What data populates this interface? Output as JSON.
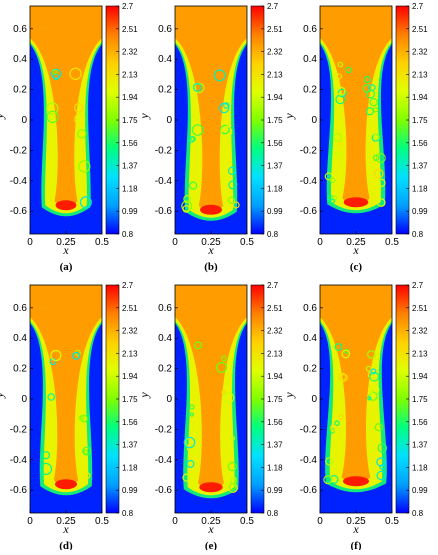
{
  "colorbar": {
    "ticks": [
      "2.7",
      "2.51",
      "2.32",
      "2.13",
      "1.94",
      "1.75",
      "1.56",
      "1.37",
      "1.18",
      "0.99",
      "0.8"
    ],
    "min": 0.8,
    "max": 2.7,
    "colors": [
      "#0000ff",
      "#00a0ff",
      "#00e0ff",
      "#00ff80",
      "#80ff00",
      "#e0ff00",
      "#ffd000",
      "#ff8000",
      "#ff0000"
    ]
  },
  "chart_data": [
    {
      "type": "heatmap",
      "panel": "(a)",
      "xlabel": "x",
      "ylabel": "y",
      "xlim": [
        0,
        0.5
      ],
      "ylim": [
        -0.75,
        0.75
      ],
      "xticks": [
        "0",
        "0.25",
        "0.5"
      ],
      "yticks": [
        "0.6",
        "0.4",
        "0.2",
        "0",
        "-0.2",
        "-0.4",
        "-0.6"
      ],
      "field_range": [
        0.8,
        2.7
      ],
      "front_y": -0.6,
      "front_width": 0.16,
      "detail": 0.25
    },
    {
      "type": "heatmap",
      "panel": "(b)",
      "xlabel": "x",
      "ylabel": "y",
      "xlim": [
        0,
        0.5
      ],
      "ylim": [
        -0.75,
        0.75
      ],
      "xticks": [
        "0",
        "0.25",
        "0.5"
      ],
      "yticks": [
        "0.6",
        "0.4",
        "0.2",
        "0",
        "-0.2",
        "-0.4",
        "-0.6"
      ],
      "field_range": [
        0.8,
        2.7
      ],
      "front_y": -0.63,
      "front_width": 0.17,
      "detail": 0.55
    },
    {
      "type": "heatmap",
      "panel": "(c)",
      "xlabel": "x",
      "ylabel": "y",
      "xlim": [
        0,
        0.5
      ],
      "ylim": [
        -0.75,
        0.75
      ],
      "xticks": [
        "0",
        "0.25",
        "0.5"
      ],
      "yticks": [
        "0.6",
        "0.4",
        "0.2",
        "0",
        "-0.2",
        "-0.4",
        "-0.6"
      ],
      "field_range": [
        0.8,
        2.7
      ],
      "front_y": -0.58,
      "front_width": 0.19,
      "detail": 1.0
    },
    {
      "type": "heatmap",
      "panel": "(d)",
      "xlabel": "x",
      "ylabel": "y",
      "xlim": [
        0,
        0.5
      ],
      "ylim": [
        -0.75,
        0.75
      ],
      "xticks": [
        "0",
        "0.25",
        "0.5"
      ],
      "yticks": [
        "0.6",
        "0.4",
        "0.2",
        "0",
        "-0.2",
        "-0.4",
        "-0.6"
      ],
      "field_range": [
        0.8,
        2.7
      ],
      "front_y": -0.6,
      "front_width": 0.17,
      "detail": 0.3
    },
    {
      "type": "heatmap",
      "panel": "(e)",
      "xlabel": "x",
      "ylabel": "y",
      "xlim": [
        0,
        0.5
      ],
      "ylim": [
        -0.75,
        0.75
      ],
      "xticks": [
        "0",
        "0.25",
        "0.5"
      ],
      "yticks": [
        "0.6",
        "0.4",
        "0.2",
        "0",
        "-0.2",
        "-0.4",
        "-0.6"
      ],
      "field_range": [
        0.8,
        2.7
      ],
      "front_y": -0.62,
      "front_width": 0.18,
      "detail": 0.6
    },
    {
      "type": "heatmap",
      "panel": "(f)",
      "xlabel": "x",
      "ylabel": "y",
      "xlim": [
        0,
        0.5
      ],
      "ylim": [
        -0.75,
        0.75
      ],
      "xticks": [
        "0",
        "0.25",
        "0.5"
      ],
      "yticks": [
        "0.6",
        "0.4",
        "0.2",
        "0",
        "-0.2",
        "-0.4",
        "-0.6"
      ],
      "field_range": [
        0.8,
        2.7
      ],
      "front_y": -0.58,
      "front_width": 0.2,
      "detail": 1.0
    }
  ]
}
